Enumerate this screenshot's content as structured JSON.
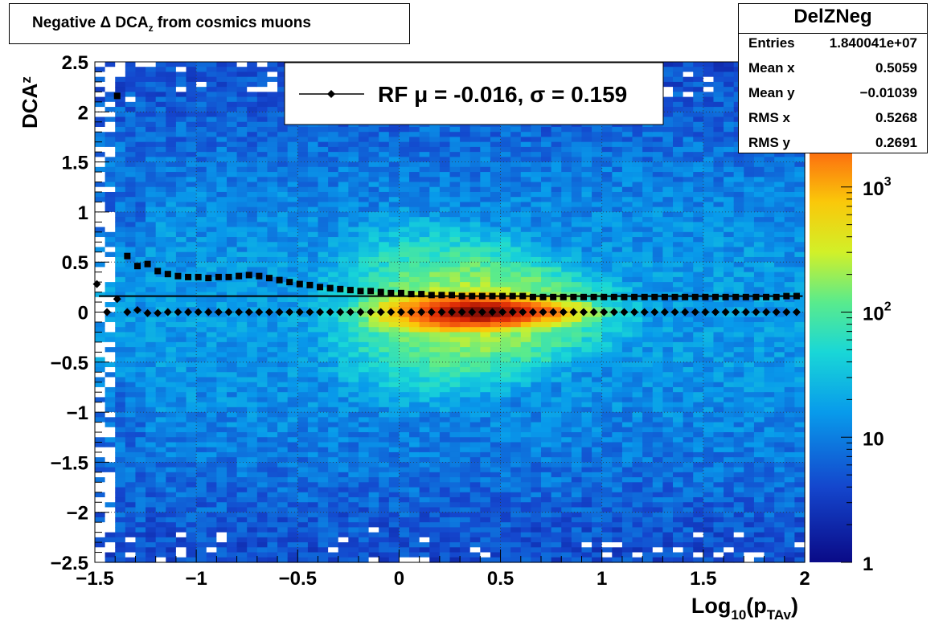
{
  "chart_data": {
    "type": "heatmap",
    "title": "Negative Δ DCA",
    "title_sub": "z",
    "title_tail": " from cosmics muons",
    "xlabel": "Log",
    "xlabel_sub": "10",
    "xlabel_mid": "(p",
    "xlabel_sub2": "TAv",
    "xlabel_end": ")",
    "ylabel": "DCA",
    "ylabel_sub": "z",
    "xlim": [
      -1.5,
      2
    ],
    "ylim": [
      -2.5,
      2.5
    ],
    "x_ticks": [
      "−1.5",
      "−1",
      "−0.5",
      "0",
      "0.5",
      "1",
      "1.5",
      "2"
    ],
    "x_tick_values": [
      -1.5,
      -1,
      -0.5,
      0,
      0.5,
      1,
      1.5,
      2
    ],
    "y_ticks": [
      "−2.5",
      "−2",
      "−1.5",
      "−1",
      "−0.5",
      "0",
      "0.5",
      "1",
      "1.5",
      "2",
      "2.5"
    ],
    "y_tick_values": [
      -2.5,
      -2,
      -1.5,
      -1,
      -0.5,
      0,
      0.5,
      1,
      1.5,
      2,
      2.5
    ],
    "grid": true,
    "z_scale": "log",
    "z_range": [
      1,
      10000
    ],
    "colorbar_labels": [
      {
        "base": "1",
        "exp": "",
        "value": 1
      },
      {
        "base": "10",
        "exp": "",
        "value": 10
      },
      {
        "base": "10",
        "exp": "2",
        "value": 100
      },
      {
        "base": "10",
        "exp": "3",
        "value": 1000
      }
    ],
    "density_peak": {
      "x": 0.4,
      "y": 0.0
    },
    "legend": {
      "text": "RF μ = -0.016, σ =   0.159",
      "placement": "top-center"
    },
    "fit_line_y": 0.16,
    "series": [
      {
        "marker": "diamond",
        "x": [
          -1.49,
          -1.44,
          -1.39,
          -1.34,
          -1.29,
          -1.24,
          -1.19,
          -1.14,
          -1.09,
          -1.04,
          -0.99,
          -0.94,
          -0.89,
          -0.84,
          -0.79,
          -0.74,
          -0.69,
          -0.64,
          -0.59,
          -0.54,
          -0.49,
          -0.44,
          -0.39,
          -0.34,
          -0.29,
          -0.24,
          -0.19,
          -0.14,
          -0.09,
          -0.04,
          0.01,
          0.06,
          0.11,
          0.16,
          0.21,
          0.26,
          0.31,
          0.36,
          0.41,
          0.46,
          0.51,
          0.56,
          0.61,
          0.66,
          0.71,
          0.76,
          0.81,
          0.86,
          0.91,
          0.96,
          1.01,
          1.06,
          1.11,
          1.16,
          1.21,
          1.26,
          1.31,
          1.36,
          1.41,
          1.46,
          1.51,
          1.56,
          1.61,
          1.66,
          1.71,
          1.76,
          1.81,
          1.86,
          1.91,
          1.96
        ],
        "y": [
          0.28,
          0.0,
          0.13,
          0.0,
          0.02,
          -0.01,
          -0.01,
          0.0,
          0.0,
          0.0,
          0.0,
          0.0,
          0.0,
          0.0,
          0.0,
          0.0,
          0.0,
          0.0,
          0.0,
          0.0,
          0.0,
          0.0,
          0.0,
          0.0,
          0.0,
          0.0,
          0.0,
          0.0,
          0.0,
          0.0,
          0.0,
          0.0,
          0.0,
          0.0,
          0.0,
          0.0,
          0.0,
          0.0,
          0.0,
          0.0,
          0.0,
          0.0,
          0.0,
          0.0,
          0.0,
          0.0,
          0.0,
          0.0,
          0.0,
          0.0,
          0.0,
          0.0,
          0.0,
          0.0,
          0.0,
          0.0,
          0.0,
          0.0,
          0.0,
          0.0,
          0.0,
          0.0,
          0.0,
          0.0,
          0.0,
          0.0,
          0.0,
          0.0,
          0.0,
          0.0
        ]
      },
      {
        "marker": "square",
        "x": [
          -1.39,
          -1.34,
          -1.29,
          -1.24,
          -1.19,
          -1.14,
          -1.09,
          -1.04,
          -0.99,
          -0.94,
          -0.89,
          -0.84,
          -0.79,
          -0.74,
          -0.69,
          -0.64,
          -0.59,
          -0.54,
          -0.49,
          -0.44,
          -0.39,
          -0.34,
          -0.29,
          -0.24,
          -0.19,
          -0.14,
          -0.09,
          -0.04,
          0.01,
          0.06,
          0.11,
          0.16,
          0.21,
          0.26,
          0.31,
          0.36,
          0.41,
          0.46,
          0.51,
          0.56,
          0.61,
          0.66,
          0.71,
          0.76,
          0.81,
          0.86,
          0.91,
          0.96,
          1.01,
          1.06,
          1.11,
          1.16,
          1.21,
          1.26,
          1.31,
          1.36,
          1.41,
          1.46,
          1.51,
          1.56,
          1.61,
          1.66,
          1.71,
          1.76,
          1.81,
          1.86,
          1.91,
          1.96
        ],
        "y": [
          2.16,
          0.56,
          0.46,
          0.48,
          0.41,
          0.38,
          0.36,
          0.35,
          0.35,
          0.34,
          0.35,
          0.35,
          0.36,
          0.37,
          0.36,
          0.34,
          0.32,
          0.3,
          0.28,
          0.27,
          0.25,
          0.24,
          0.23,
          0.22,
          0.21,
          0.21,
          0.2,
          0.19,
          0.19,
          0.18,
          0.18,
          0.17,
          0.17,
          0.17,
          0.16,
          0.16,
          0.16,
          0.16,
          0.16,
          0.16,
          0.16,
          0.15,
          0.15,
          0.15,
          0.15,
          0.15,
          0.15,
          0.15,
          0.15,
          0.15,
          0.15,
          0.15,
          0.15,
          0.15,
          0.15,
          0.15,
          0.15,
          0.15,
          0.15,
          0.15,
          0.15,
          0.15,
          0.15,
          0.15,
          0.15,
          0.15,
          0.16,
          0.16
        ]
      }
    ]
  },
  "stats": {
    "name": "DelZNeg",
    "rows": [
      {
        "key": "Entries",
        "value": "1.840041e+07"
      },
      {
        "key": "Mean x",
        "value": "0.5059"
      },
      {
        "key": "Mean y",
        "value": "−0.01039"
      },
      {
        "key": "RMS x",
        "value": "0.5268"
      },
      {
        "key": "RMS y",
        "value": "0.2691"
      }
    ]
  }
}
